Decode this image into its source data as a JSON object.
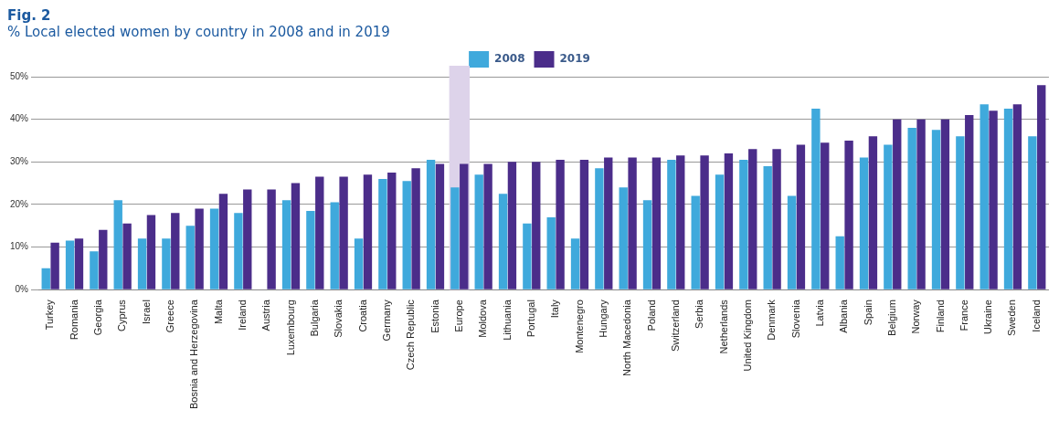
{
  "chart_data": {
    "type": "bar",
    "title": "Fig. 2",
    "subtitle": "% Local elected women by country in 2008 and in 2019",
    "categories": [
      "Turkey",
      "Romania",
      "Georgia",
      "Cyprus",
      "Israel",
      "Greece",
      "Bosnia and Herzegovina",
      "Malta",
      "Ireland",
      "Austria",
      "Luxembourg",
      "Bulgaria",
      "Slovakia",
      "Croatia",
      "Germany",
      "Czech Republic",
      "Estonia",
      "Europe",
      "Moldova",
      "Lithuania",
      "Portugal",
      "Italy",
      "Montenegro",
      "Hungary",
      "North Macedonia",
      "Poland",
      "Switzerland",
      "Serbia",
      "Netherlands",
      "United Kingdom",
      "Denmark",
      "Slovenia",
      "Latvia",
      "Albania",
      "Spain",
      "Belgium",
      "Norway",
      "Finland",
      "France",
      "Ukraine",
      "Sweden",
      "Iceland"
    ],
    "series": [
      {
        "name": "2008",
        "color": "#3fa9dc",
        "values": [
          5,
          11.5,
          9,
          21,
          12,
          12,
          15,
          19,
          18,
          0,
          21,
          18.5,
          20.5,
          12,
          26,
          25.5,
          30.5,
          24,
          27,
          22.5,
          15.5,
          17,
          12,
          28.5,
          24,
          21,
          30.5,
          22,
          27,
          30.5,
          29,
          22,
          42.5,
          12.5,
          31,
          34,
          38,
          37.5,
          36,
          43.5,
          42.5,
          36
        ]
      },
      {
        "name": "2019",
        "color": "#4b2d8a",
        "values": [
          11,
          12,
          14,
          15.5,
          17.5,
          18,
          19,
          22.5,
          23.5,
          23.5,
          25,
          26.5,
          26.5,
          27,
          27.5,
          28.5,
          29.5,
          29.5,
          29.5,
          30,
          30,
          30.5,
          30.5,
          31,
          31,
          31,
          31.5,
          31.5,
          32,
          33,
          33,
          34,
          34.5,
          35,
          36,
          40,
          40,
          40,
          41,
          42,
          43.5,
          48
        ]
      }
    ],
    "ylim": [
      0,
      50
    ],
    "yticks": [
      {
        "value": 0,
        "label": "0%"
      },
      {
        "value": 10,
        "label": "10%"
      },
      {
        "value": 20,
        "label": "20%"
      },
      {
        "value": 30,
        "label": "30%"
      },
      {
        "value": 40,
        "label": "40%"
      },
      {
        "value": 50,
        "label": "50%"
      }
    ],
    "grid": "y",
    "legend": "top",
    "bands": [
      {
        "axis": "x",
        "from": "Europe",
        "to": "Europe",
        "color": "#ddd3ea"
      }
    ]
  }
}
